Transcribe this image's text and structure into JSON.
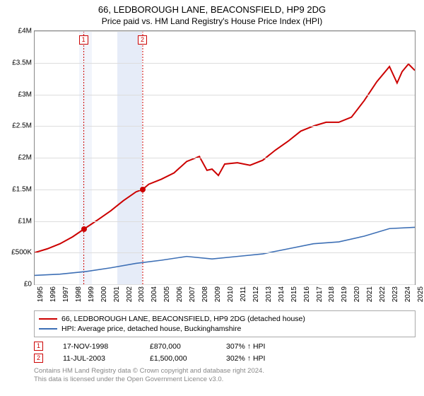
{
  "title": "66, LEDBOROUGH LANE, BEACONSFIELD, HP9 2DG",
  "subtitle": "Price paid vs. HM Land Registry's House Price Index (HPI)",
  "chart": {
    "type": "line",
    "background_color": "#ffffff",
    "grid_color": "#dddddd",
    "border_color": "#888888",
    "x": {
      "min": 1995,
      "max": 2025,
      "tick_step": 1
    },
    "y": {
      "min": 0,
      "max": 4000000,
      "tick_step": 500000,
      "tick_labels": [
        "£0",
        "£500K",
        "£1M",
        "£1.5M",
        "£2M",
        "£2.5M",
        "£3M",
        "£3.5M",
        "£4M"
      ]
    },
    "bands": [
      {
        "from": 1998.5,
        "to": 1999.5,
        "color": "#f1f4fb"
      },
      {
        "from": 2001.5,
        "to": 2003.5,
        "color": "#e6ecf8"
      }
    ],
    "markers": [
      {
        "label": "1",
        "x": 1998.88,
        "y": 870000,
        "line_color": "#cc0000",
        "dash": "2,2"
      },
      {
        "label": "2",
        "x": 2003.53,
        "y": 1500000,
        "line_color": "#cc0000",
        "dash": "2,2"
      }
    ],
    "series": [
      {
        "name": "66, LEDBOROUGH LANE, BEACONSFIELD, HP9 2DG (detached house)",
        "color": "#cc0000",
        "line_width": 2,
        "points": [
          [
            1995,
            500000
          ],
          [
            1996,
            560000
          ],
          [
            1997,
            640000
          ],
          [
            1998,
            750000
          ],
          [
            1998.88,
            870000
          ],
          [
            2000,
            1020000
          ],
          [
            2001,
            1160000
          ],
          [
            2002,
            1320000
          ],
          [
            2003,
            1460000
          ],
          [
            2003.53,
            1500000
          ],
          [
            2004,
            1580000
          ],
          [
            2005,
            1660000
          ],
          [
            2006,
            1760000
          ],
          [
            2007,
            1940000
          ],
          [
            2008,
            2020000
          ],
          [
            2008.6,
            1800000
          ],
          [
            2009,
            1820000
          ],
          [
            2009.5,
            1720000
          ],
          [
            2010,
            1900000
          ],
          [
            2011,
            1920000
          ],
          [
            2012,
            1880000
          ],
          [
            2013,
            1960000
          ],
          [
            2014,
            2120000
          ],
          [
            2015,
            2260000
          ],
          [
            2016,
            2420000
          ],
          [
            2017,
            2500000
          ],
          [
            2018,
            2560000
          ],
          [
            2019,
            2560000
          ],
          [
            2020,
            2640000
          ],
          [
            2021,
            2900000
          ],
          [
            2022,
            3200000
          ],
          [
            2023,
            3440000
          ],
          [
            2023.6,
            3180000
          ],
          [
            2024,
            3360000
          ],
          [
            2024.5,
            3480000
          ],
          [
            2025,
            3380000
          ]
        ]
      },
      {
        "name": "HPI: Average price, detached house, Buckinghamshire",
        "color": "#3d6fb5",
        "line_width": 1.6,
        "points": [
          [
            1995,
            140000
          ],
          [
            1997,
            160000
          ],
          [
            1999,
            200000
          ],
          [
            2001,
            260000
          ],
          [
            2003,
            330000
          ],
          [
            2005,
            380000
          ],
          [
            2007,
            440000
          ],
          [
            2009,
            400000
          ],
          [
            2011,
            440000
          ],
          [
            2013,
            480000
          ],
          [
            2015,
            560000
          ],
          [
            2017,
            640000
          ],
          [
            2019,
            670000
          ],
          [
            2021,
            760000
          ],
          [
            2023,
            880000
          ],
          [
            2025,
            900000
          ]
        ]
      }
    ]
  },
  "legend": [
    {
      "color": "#cc0000",
      "label": "66, LEDBOROUGH LANE, BEACONSFIELD, HP9 2DG (detached house)"
    },
    {
      "color": "#3d6fb5",
      "label": "HPI: Average price, detached house, Buckinghamshire"
    }
  ],
  "sales": [
    {
      "num": "1",
      "date": "17-NOV-1998",
      "price": "£870,000",
      "delta": "307% ↑ HPI"
    },
    {
      "num": "2",
      "date": "11-JUL-2003",
      "price": "£1,500,000",
      "delta": "302% ↑ HPI"
    }
  ],
  "footer": {
    "line1": "Contains HM Land Registry data © Crown copyright and database right 2024.",
    "line2": "This data is licensed under the Open Government Licence v3.0."
  }
}
